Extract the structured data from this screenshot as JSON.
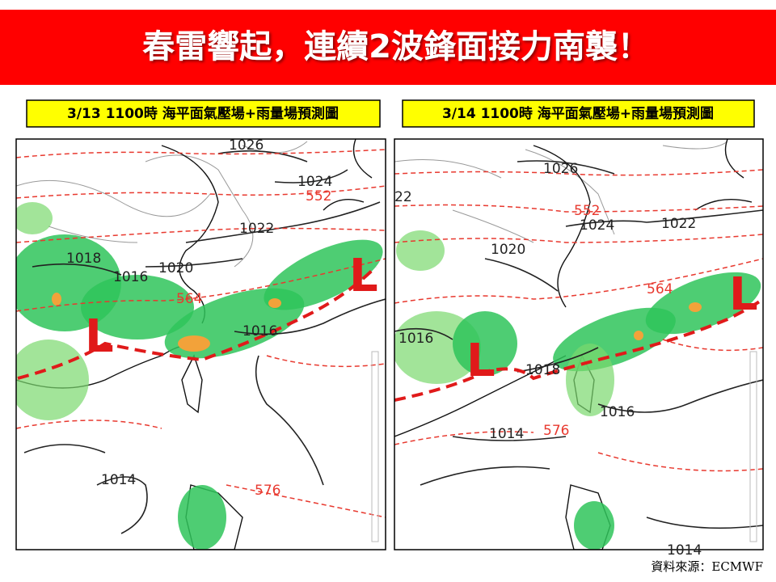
{
  "header": {
    "title": "春雷響起，連續2波鋒面接力南襲！"
  },
  "panels": [
    {
      "label": "3/13  1100時  海平面氣壓場+雨量場預測圖",
      "map_labels": [
        "1026",
        "1024",
        "552",
        "1022",
        "1018",
        "1016",
        "1020",
        "564",
        "1016",
        "1014",
        "576"
      ],
      "lows": [
        "L",
        "L"
      ]
    },
    {
      "label": "3/14  1100時  海平面氣壓場+雨量場預測圖",
      "map_labels": [
        "1026",
        "552",
        "1024",
        "1022",
        "22",
        "1020",
        "564",
        "1016",
        "1018",
        "1014",
        "576",
        "1016",
        "1014"
      ],
      "lows": [
        "L",
        "L"
      ]
    }
  ],
  "source": "資料來源：ECMWF"
}
